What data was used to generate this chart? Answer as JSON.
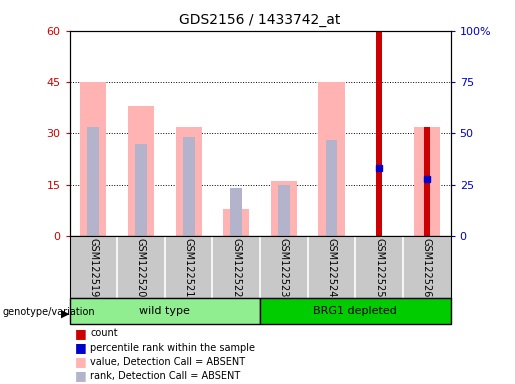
{
  "title": "GDS2156 / 1433742_at",
  "samples": [
    "GSM122519",
    "GSM122520",
    "GSM122521",
    "GSM122522",
    "GSM122523",
    "GSM122524",
    "GSM122525",
    "GSM122526"
  ],
  "value_absent": [
    45,
    38,
    32,
    8,
    16,
    45,
    0,
    32
  ],
  "rank_absent": [
    32,
    27,
    29,
    14,
    15,
    28,
    0,
    0
  ],
  "count": [
    0,
    0,
    0,
    0,
    0,
    0,
    60,
    32
  ],
  "percentile_rank": [
    0,
    0,
    0,
    0,
    0,
    0,
    33,
    28
  ],
  "has_count": [
    false,
    false,
    false,
    false,
    false,
    false,
    true,
    true
  ],
  "has_absent": [
    true,
    true,
    true,
    true,
    true,
    true,
    false,
    true
  ],
  "ylim_left": [
    0,
    60
  ],
  "ylim_right": [
    0,
    100
  ],
  "yticks_left": [
    0,
    15,
    30,
    45,
    60
  ],
  "yticks_right": [
    0,
    25,
    50,
    75,
    100
  ],
  "yticklabels_right": [
    "0",
    "25",
    "50",
    "75",
    "100%"
  ],
  "color_count": "#cc0000",
  "color_percentile": "#0000cc",
  "color_value_absent": "#ffb3b3",
  "color_rank_absent": "#b3b3cc",
  "bg_color": "#c8c8c8",
  "group_color_wt": "#90ee90",
  "group_color_brg": "#00cc00",
  "legend_items": [
    "count",
    "percentile rank within the sample",
    "value, Detection Call = ABSENT",
    "rank, Detection Call = ABSENT"
  ],
  "wt_label": "wild type",
  "brg_label": "BRG1 depleted",
  "genotype_label": "genotype/variation"
}
